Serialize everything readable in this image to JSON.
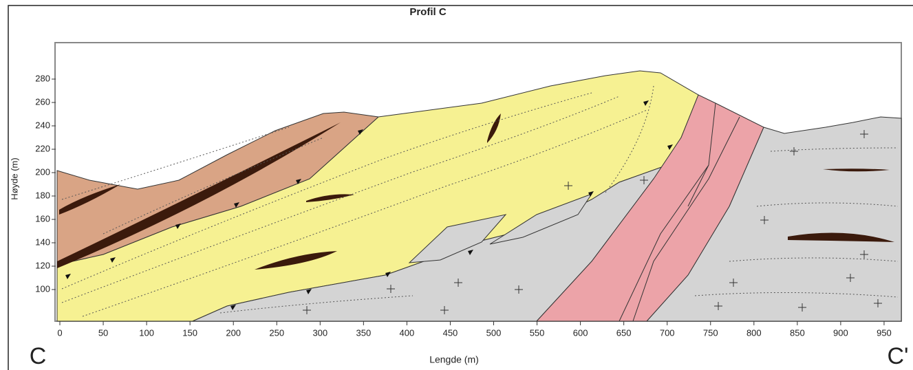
{
  "title": "Profil C",
  "y_axis": {
    "label": "Høyde (m)",
    "ticks": [
      100,
      120,
      140,
      160,
      180,
      200,
      220,
      240,
      260,
      280
    ]
  },
  "x_axis": {
    "label": "Lengde (m)",
    "ticks": [
      0,
      50,
      100,
      150,
      200,
      250,
      300,
      350,
      400,
      450,
      500,
      550,
      600,
      650,
      700,
      750,
      800,
      850,
      900,
      950
    ]
  },
  "corner_labels": [
    "C",
    "C'"
  ]
}
